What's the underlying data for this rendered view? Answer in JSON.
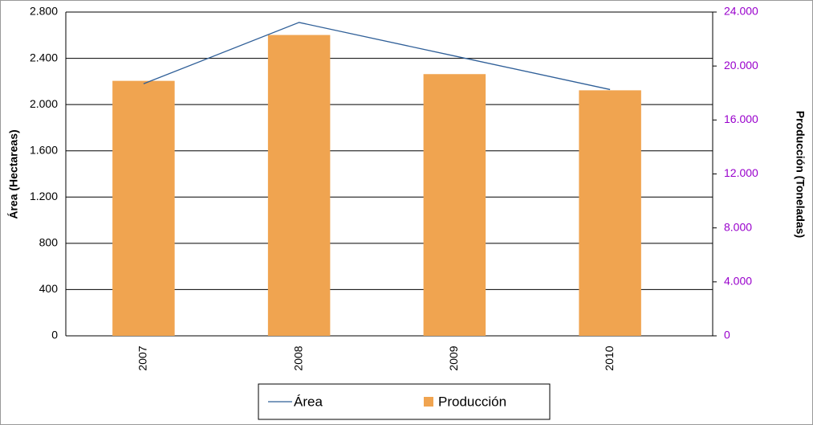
{
  "chart_data": {
    "type": "combo",
    "categories": [
      "2007",
      "2008",
      "2009",
      "2010"
    ],
    "y_label": "Área (Hectareas)",
    "y2_label": "Producción (Toneladas)",
    "series": [
      {
        "name": "Área",
        "type": "line",
        "color": "#2f5f98",
        "values": [
          2180,
          2710,
          2420,
          2130
        ]
      },
      {
        "name": "Producción",
        "type": "bar",
        "axis": "y2",
        "color": "#f0a450",
        "values": [
          18900,
          22300,
          19400,
          18200
        ]
      }
    ],
    "ylim": [
      0,
      2800
    ],
    "yticks": [
      0,
      400,
      800,
      {
        "value": 1200,
        "label": "1.200"
      },
      {
        "value": 1600,
        "label": "1.600"
      },
      {
        "value": 2000,
        "label": "2.000"
      },
      {
        "value": 2400,
        "label": "2.400"
      },
      {
        "value": 2800,
        "label": "2.800"
      }
    ],
    "y2lim": [
      0,
      24000
    ],
    "y2ticks": [
      0,
      {
        "value": 4000,
        "label": "4.000"
      },
      {
        "value": 8000,
        "label": "8.000"
      },
      {
        "value": 12000,
        "label": "12.000"
      },
      {
        "value": 16000,
        "label": "16.000"
      },
      {
        "value": 20000,
        "label": "20.000"
      },
      {
        "value": 24000,
        "label": "24.000"
      }
    ],
    "y2_tick_color": "#9900cc",
    "grid": true
  }
}
